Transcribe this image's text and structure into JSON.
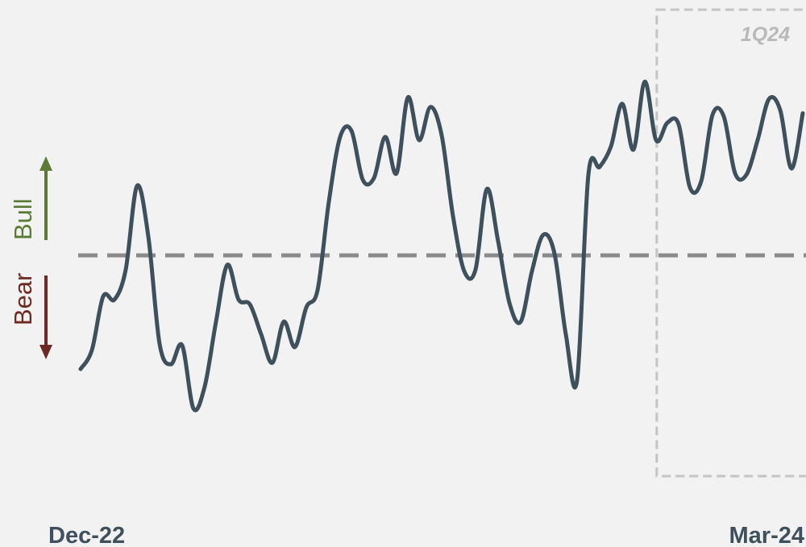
{
  "chart_data": {
    "type": "line",
    "x_start_label": "Dec-22",
    "x_end_label": "Mar-24",
    "highlight_label": "1Q24",
    "highlight_x_start": 0.8,
    "up_label": "Bull",
    "down_label": "Bear",
    "neutral_level": 0,
    "ylim": [
      -1,
      1
    ],
    "series": [
      {
        "values": [
          -0.72,
          -0.6,
          -0.26,
          -0.28,
          -0.09,
          0.44,
          0.12,
          -0.56,
          -0.69,
          -0.57,
          -0.97,
          -0.83,
          -0.42,
          -0.06,
          -0.28,
          -0.31,
          -0.5,
          -0.68,
          -0.42,
          -0.58,
          -0.33,
          -0.22,
          0.34,
          0.75,
          0.79,
          0.48,
          0.49,
          0.75,
          0.52,
          1.0,
          0.73,
          0.94,
          0.76,
          0.25,
          -0.1,
          -0.09,
          0.42,
          0.09,
          -0.3,
          -0.42,
          -0.1,
          0.13,
          0.01,
          -0.5,
          -0.79,
          0.51,
          0.56,
          0.69,
          0.96,
          0.67,
          1.1,
          0.73,
          0.84,
          0.83,
          0.43,
          0.47,
          0.89,
          0.88,
          0.52,
          0.51,
          0.73,
          0.99,
          0.92,
          0.55,
          0.9
        ]
      }
    ],
    "colors": {
      "line": "#3f505d",
      "baseline": "#8a8a8a",
      "highlight_box": "#c4c4c4",
      "bull": "#5a7b34",
      "bear": "#6e2a22",
      "axis_text": "#3f505d",
      "background": "#f2f2f2"
    }
  }
}
